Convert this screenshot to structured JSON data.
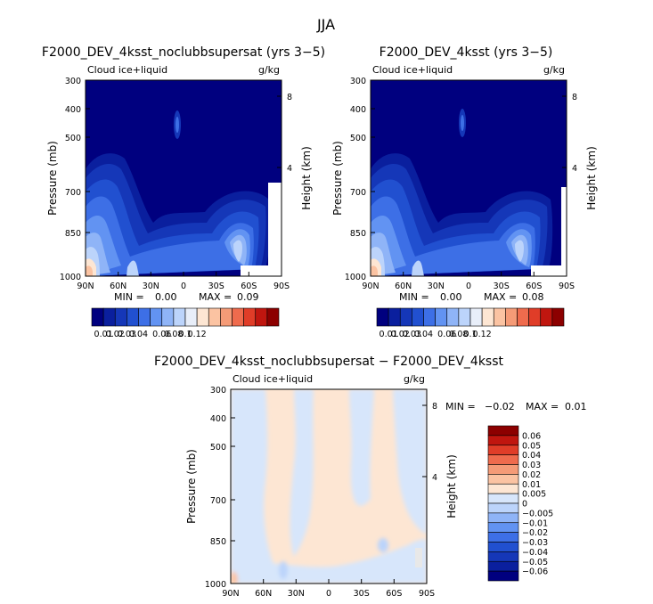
{
  "page_title": "JJA",
  "colors": {
    "ctrl_levels": [
      "#00007f",
      "#0a1f9e",
      "#1537b8",
      "#2150d0",
      "#3d6fe6",
      "#6293f2",
      "#8fb4f7",
      "#bcd4fb",
      "#e8eef9",
      "#fde6d3",
      "#fbc3a2",
      "#f59b77",
      "#ef6b4d",
      "#e03d28",
      "#c0160f",
      "#8c0000"
    ],
    "diff_levels": [
      "#00007f",
      "#0a1f9e",
      "#1537b8",
      "#2150d0",
      "#3d6fe6",
      "#6293f2",
      "#8fb4f7",
      "#bcd4fb",
      "#d7e6fb",
      "#fde6d3",
      "#fbc3a2",
      "#f59b77",
      "#ef6b4d",
      "#e03d28",
      "#c0160f",
      "#8c0000"
    ]
  },
  "chart_data": [
    {
      "type": "heatmap",
      "title": "F2000_DEV_4ksst_noclubbsupersat (yrs 3−5)",
      "left_label": "Cloud ice+liquid",
      "right_label": "g/kg",
      "xlabel": "",
      "ylabel": "Pressure (mb)",
      "y2label": "Height (km)",
      "x_ticks": [
        "90N",
        "60N",
        "30N",
        "0",
        "30S",
        "60S",
        "90S"
      ],
      "y_ticks": [
        "300",
        "400",
        "500",
        "700",
        "850",
        "1000"
      ],
      "y2_ticks": [
        "8",
        "4"
      ],
      "min_label": "MIN =",
      "min_value": "0.00",
      "max_label": "MAX =",
      "max_value": "0.09",
      "colorbar_labels": [
        "0.01",
        "0.02",
        "0.03",
        "0.04",
        "0.06",
        "0.08",
        "0.1",
        "0.12"
      ]
    },
    {
      "type": "heatmap",
      "title": "F2000_DEV_4ksst (yrs 3−5)",
      "left_label": "Cloud ice+liquid",
      "right_label": "g/kg",
      "xlabel": "",
      "ylabel": "Pressure (mb)",
      "y2label": "Height (km)",
      "x_ticks": [
        "90N",
        "60N",
        "30N",
        "0",
        "30S",
        "60S",
        "90S"
      ],
      "y_ticks": [
        "300",
        "400",
        "500",
        "700",
        "850",
        "1000"
      ],
      "y2_ticks": [
        "8",
        "4"
      ],
      "min_label": "MIN =",
      "min_value": "0.00",
      "max_label": "MAX =",
      "max_value": "0.08",
      "colorbar_labels": [
        "0.01",
        "0.02",
        "0.03",
        "0.04",
        "0.06",
        "0.08",
        "0.1",
        "0.12"
      ]
    },
    {
      "type": "heatmap",
      "title": "F2000_DEV_4ksst_noclubbsupersat − F2000_DEV_4ksst",
      "left_label": "Cloud ice+liquid",
      "right_label": "g/kg",
      "xlabel": "",
      "ylabel": "Pressure (mb)",
      "y2label": "Height (km)",
      "x_ticks": [
        "90N",
        "60N",
        "30N",
        "0",
        "30S",
        "60S",
        "90S"
      ],
      "y_ticks": [
        "300",
        "400",
        "500",
        "700",
        "850",
        "1000"
      ],
      "y2_ticks": [
        "8",
        "4"
      ],
      "min_label": "MIN =",
      "min_value": "−0.02",
      "max_label": "MAX =",
      "max_value": "0.01",
      "colorbar_labels": [
        "0.06",
        "0.05",
        "0.04",
        "0.03",
        "0.02",
        "0.01",
        "0.005",
        "0",
        "−0.005",
        "−0.01",
        "−0.02",
        "−0.03",
        "−0.04",
        "−0.05",
        "−0.06"
      ]
    }
  ]
}
